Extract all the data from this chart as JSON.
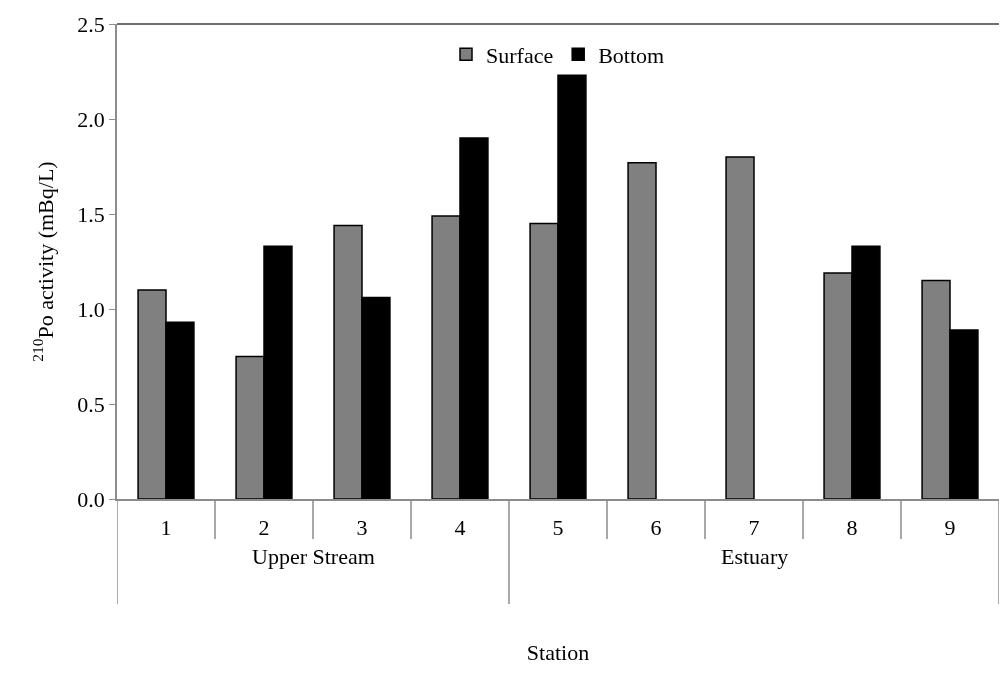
{
  "chart_data": {
    "type": "bar",
    "xlabel": "Station",
    "ylabel": "$^{210}$Po activity (mBq/L)",
    "categories": [
      "1",
      "2",
      "3",
      "4",
      "5",
      "6",
      "7",
      "8",
      "9"
    ],
    "series": [
      {
        "name": "Surface",
        "color": "#808080",
        "values": [
          1.1,
          0.75,
          1.44,
          1.49,
          1.45,
          1.77,
          1.8,
          1.19,
          1.15
        ]
      },
      {
        "name": "Bottom",
        "color": "#000000",
        "values": [
          0.93,
          1.33,
          1.06,
          1.9,
          2.23,
          null,
          null,
          1.33,
          0.89
        ]
      }
    ],
    "annotations": [
      "Upper Stream",
      "Estuary"
    ],
    "ylim": [
      0,
      2.5
    ],
    "yticks": [
      {
        "value": 0,
        "label": "0.0"
      },
      {
        "value": 0.5,
        "label": "0.5"
      },
      {
        "value": 1,
        "label": "1.0"
      },
      {
        "value": 1.5,
        "label": "1.5"
      },
      {
        "value": 2,
        "label": "2.0"
      },
      {
        "value": 2.5,
        "label": "2.5"
      }
    ],
    "grid": false,
    "legend": "top"
  }
}
